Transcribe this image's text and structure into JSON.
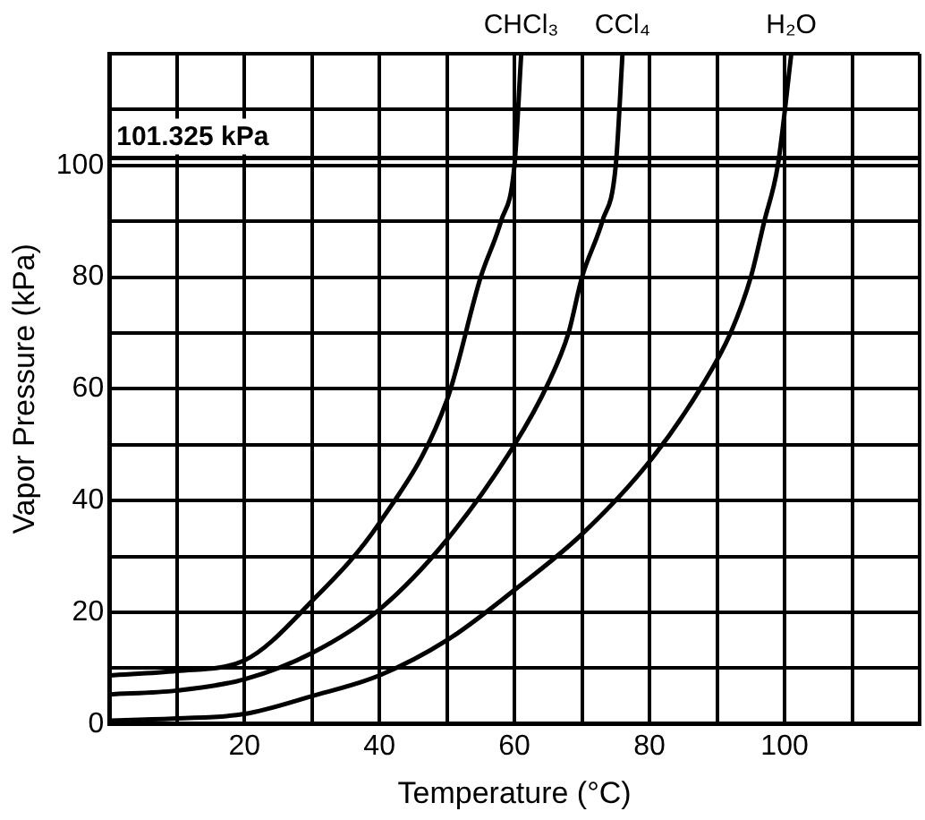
{
  "chart_data": {
    "type": "line",
    "xlabel": "Temperature (°C)",
    "ylabel": "Vapor Pressure (kPa)",
    "xlim": [
      0,
      120
    ],
    "ylim": [
      0,
      120
    ],
    "xticks": [
      {
        "value": 0,
        "label": null
      },
      {
        "value": 10,
        "label": null
      },
      20,
      {
        "value": 30,
        "label": null
      },
      40,
      {
        "value": 50,
        "label": null
      },
      60,
      {
        "value": 70,
        "label": null
      },
      80,
      {
        "value": 90,
        "label": null
      },
      100,
      {
        "value": 110,
        "label": null
      },
      {
        "value": 120,
        "label": null
      }
    ],
    "yticks": [
      0,
      {
        "value": 10,
        "label": null
      },
      20,
      {
        "value": 30,
        "label": null
      },
      40,
      {
        "value": 50,
        "label": null
      },
      60,
      {
        "value": 70,
        "label": null
      },
      80,
      {
        "value": 90,
        "label": null
      },
      100,
      {
        "value": 110,
        "label": null
      },
      {
        "value": 120,
        "label": null
      }
    ],
    "grid": true,
    "legend": false,
    "marker": "none",
    "line_style": "solid",
    "ref_lines": [
      {
        "axis": "y",
        "value": 101.325,
        "label": "101.325 kPa",
        "color": "#000000"
      }
    ],
    "series": [
      {
        "name": "CHCl₃",
        "color": "#000000",
        "x": [
          0,
          10,
          20,
          30,
          40,
          50,
          55,
          58,
          60,
          61
        ],
        "values": [
          8.7,
          9.5,
          11.4,
          22,
          36,
          58,
          80,
          90,
          100,
          120
        ]
      },
      {
        "name": "CCl₄",
        "color": "#000000",
        "x": [
          0,
          10,
          20,
          30,
          40,
          50,
          60,
          65,
          68,
          70,
          73,
          75,
          76
        ],
        "values": [
          5.3,
          6,
          8,
          12.7,
          20.5,
          33,
          50,
          61,
          70,
          80,
          90,
          100,
          120
        ]
      },
      {
        "name": "H₂O",
        "color": "#000000",
        "x": [
          0,
          10,
          20,
          30,
          40,
          50,
          60,
          70,
          80,
          88,
          92,
          95,
          97,
          99,
          101
        ],
        "values": [
          0.6,
          1,
          1.8,
          5,
          8.7,
          15,
          24,
          34,
          47,
          61,
          70,
          80,
          90,
          100,
          120
        ]
      }
    ]
  }
}
